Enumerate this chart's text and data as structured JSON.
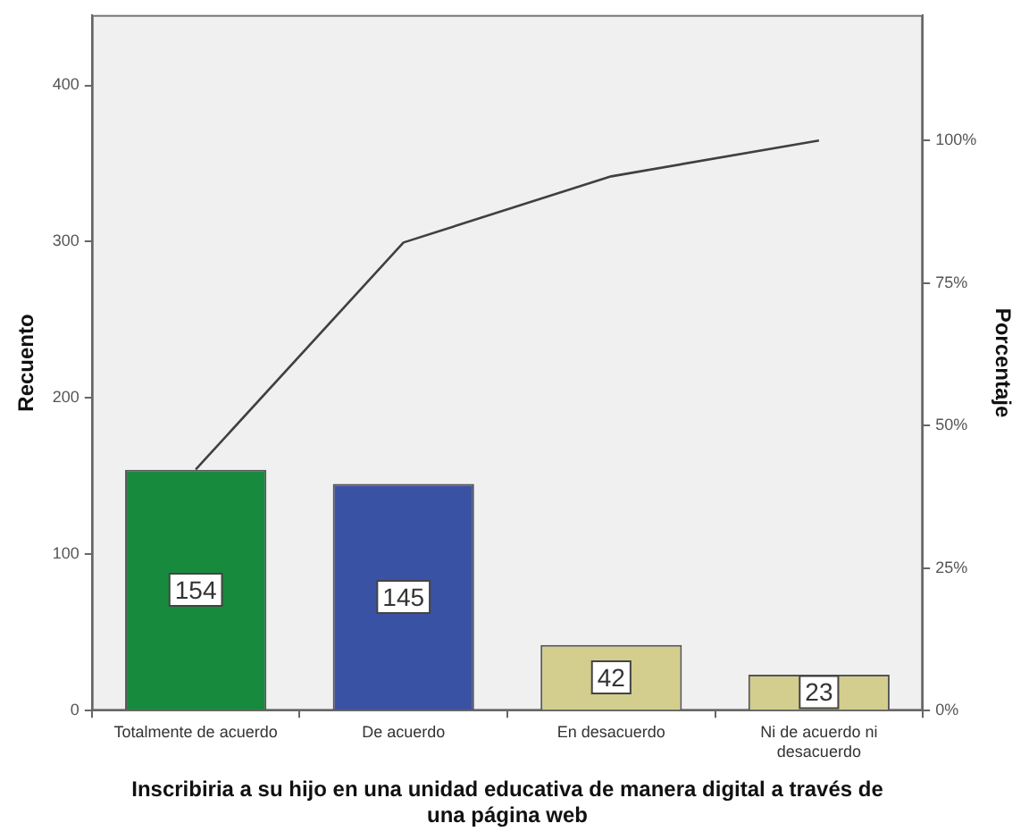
{
  "chart_data": {
    "type": "bar",
    "xlabel": "Inscribiria a su hijo en una unidad educativa de manera digital a través de una página web",
    "ylabel": "Recuento",
    "y2label": "Porcentaje",
    "categories": [
      "Totalmente de acuerdo",
      "De acuerdo",
      "En desacuerdo",
      "Ni de acuerdo ni desacuerdo"
    ],
    "series": [
      {
        "colors": [
          "#178a3e",
          "#3a52a3",
          "#d3cd8e",
          "#d3cd8e"
        ],
        "values": [
          154,
          145,
          42,
          23
        ],
        "value_labels": [
          "154",
          "145",
          "42",
          "23"
        ]
      },
      {
        "type": "line",
        "axis": "y2",
        "color": "#404040",
        "values": [
          42.3,
          82.1,
          93.7,
          100
        ]
      }
    ],
    "ylim": [
      0,
      445
    ],
    "yticks": [
      0,
      100,
      200,
      300,
      400
    ],
    "y2lim": [
      0,
      122
    ],
    "y2ticks": [
      {
        "value": 0,
        "label": "0%"
      },
      {
        "value": 25,
        "label": "25%"
      },
      {
        "value": 50,
        "label": "50%"
      },
      {
        "value": 75,
        "label": "75%"
      },
      {
        "value": 100,
        "label": "100%"
      }
    ],
    "grid": false,
    "legend": false,
    "marker": "none"
  }
}
